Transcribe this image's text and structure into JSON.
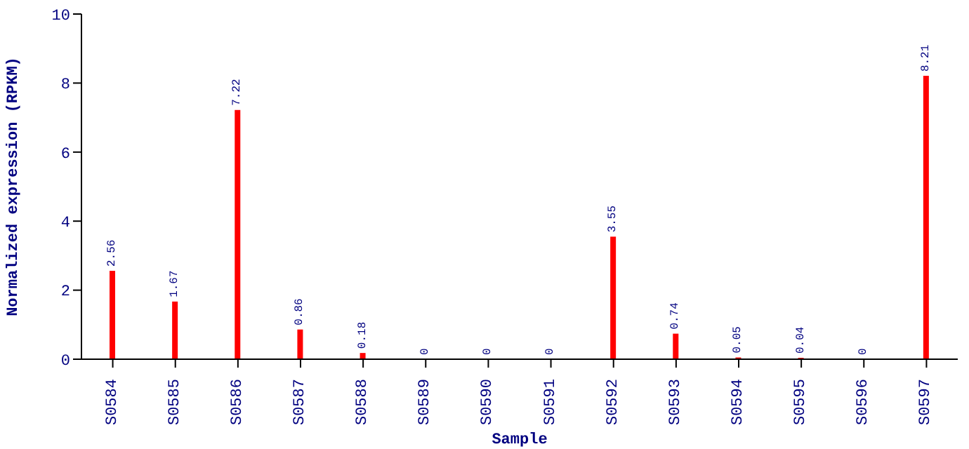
{
  "chart_data": {
    "type": "bar",
    "xlabel": "Sample",
    "ylabel": "Normalized expression (RPKM)",
    "categories": [
      "S0584",
      "S0585",
      "S0586",
      "S0587",
      "S0588",
      "S0589",
      "S0590",
      "S0591",
      "S0592",
      "S0593",
      "S0594",
      "S0595",
      "S0596",
      "S0597"
    ],
    "values": [
      2.56,
      1.67,
      7.22,
      0.86,
      0.18,
      0,
      0,
      0,
      3.55,
      0.74,
      0.05,
      0.04,
      0,
      8.21
    ],
    "color": "#ff0000",
    "ylim": [
      0,
      10
    ],
    "yticks": [
      0,
      2,
      4,
      6,
      8,
      10
    ],
    "data_labels": true,
    "grid": false,
    "legend": false
  }
}
